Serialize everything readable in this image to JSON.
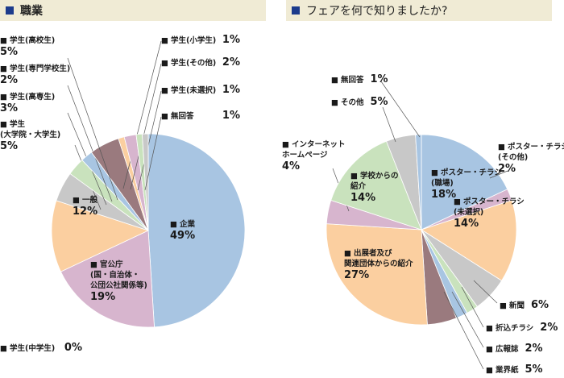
{
  "chart_data": [
    {
      "type": "pie",
      "title": "職業",
      "slices": [
        {
          "name": "企業",
          "value": 49,
          "label": "49%",
          "color": "#a8c5e2"
        },
        {
          "name": "官公庁\n(国・自治体・\n公団公社関係等)",
          "value": 19,
          "label": "19%",
          "color": "#d7b5ce"
        },
        {
          "name": "一般",
          "value": 12,
          "label": "12%",
          "color": "#fbcfa0"
        },
        {
          "name": "学生\n(大学院・大学生)",
          "value": 5,
          "label": "5%",
          "color": "#c8c8c8"
        },
        {
          "name": "学生(高専生)",
          "value": 3,
          "label": "3%",
          "color": "#c9e2bd"
        },
        {
          "name": "学生(専門学校生)",
          "value": 2,
          "label": "2%",
          "color": "#a8c5e2"
        },
        {
          "name": "学生(高校生)",
          "value": 5,
          "label": "5%",
          "color": "#9a7a7e"
        },
        {
          "name": "学生(小学生)",
          "value": 1,
          "label": "1%",
          "color": "#fbcfa0"
        },
        {
          "name": "学生(その他)",
          "value": 2,
          "label": "2%",
          "color": "#d7b5ce"
        },
        {
          "name": "学生(未選択)",
          "value": 1,
          "label": "1%",
          "color": "#c9e2bd"
        },
        {
          "name": "無回答",
          "value": 1,
          "label": "1%",
          "color": "#c8c8c8"
        },
        {
          "name": "学生(中学生)",
          "value": 0,
          "label": "0%",
          "color": "#ffffff"
        }
      ]
    },
    {
      "type": "pie",
      "title": "フェアを何で知りましたか?",
      "slices": [
        {
          "name": "ポスター・チラシ\n(職場)",
          "value": 18,
          "label": "18%",
          "color": "#a8c5e2"
        },
        {
          "name": "ポスター・チラシ\n(その他)",
          "value": 2,
          "label": "2%",
          "color": "#d7b5ce"
        },
        {
          "name": "ポスター・チラシ\n(未選択)",
          "value": 14,
          "label": "14%",
          "color": "#fbcfa0"
        },
        {
          "name": "新聞",
          "value": 6,
          "label": "6%",
          "color": "#c8c8c8"
        },
        {
          "name": "折込チラシ",
          "value": 2,
          "label": "2%",
          "color": "#c9e2bd"
        },
        {
          "name": "広報誌",
          "value": 2,
          "label": "2%",
          "color": "#a8c5e2"
        },
        {
          "name": "業界紙",
          "value": 5,
          "label": "5%",
          "color": "#9a7a7e"
        },
        {
          "name": "出展者及び\n関連団体からの紹介",
          "value": 27,
          "label": "27%",
          "color": "#fbcfa0"
        },
        {
          "name": "インターネット\nホームページ",
          "value": 4,
          "label": "4%",
          "color": "#d7b5ce"
        },
        {
          "name": "学校からの\n紹介",
          "value": 14,
          "label": "14%",
          "color": "#c9e2bd"
        },
        {
          "name": "その他",
          "value": 5,
          "label": "5%",
          "color": "#c8c8c8"
        },
        {
          "name": "無回答",
          "value": 1,
          "label": "1%",
          "color": "#a8c5e2"
        }
      ]
    }
  ]
}
